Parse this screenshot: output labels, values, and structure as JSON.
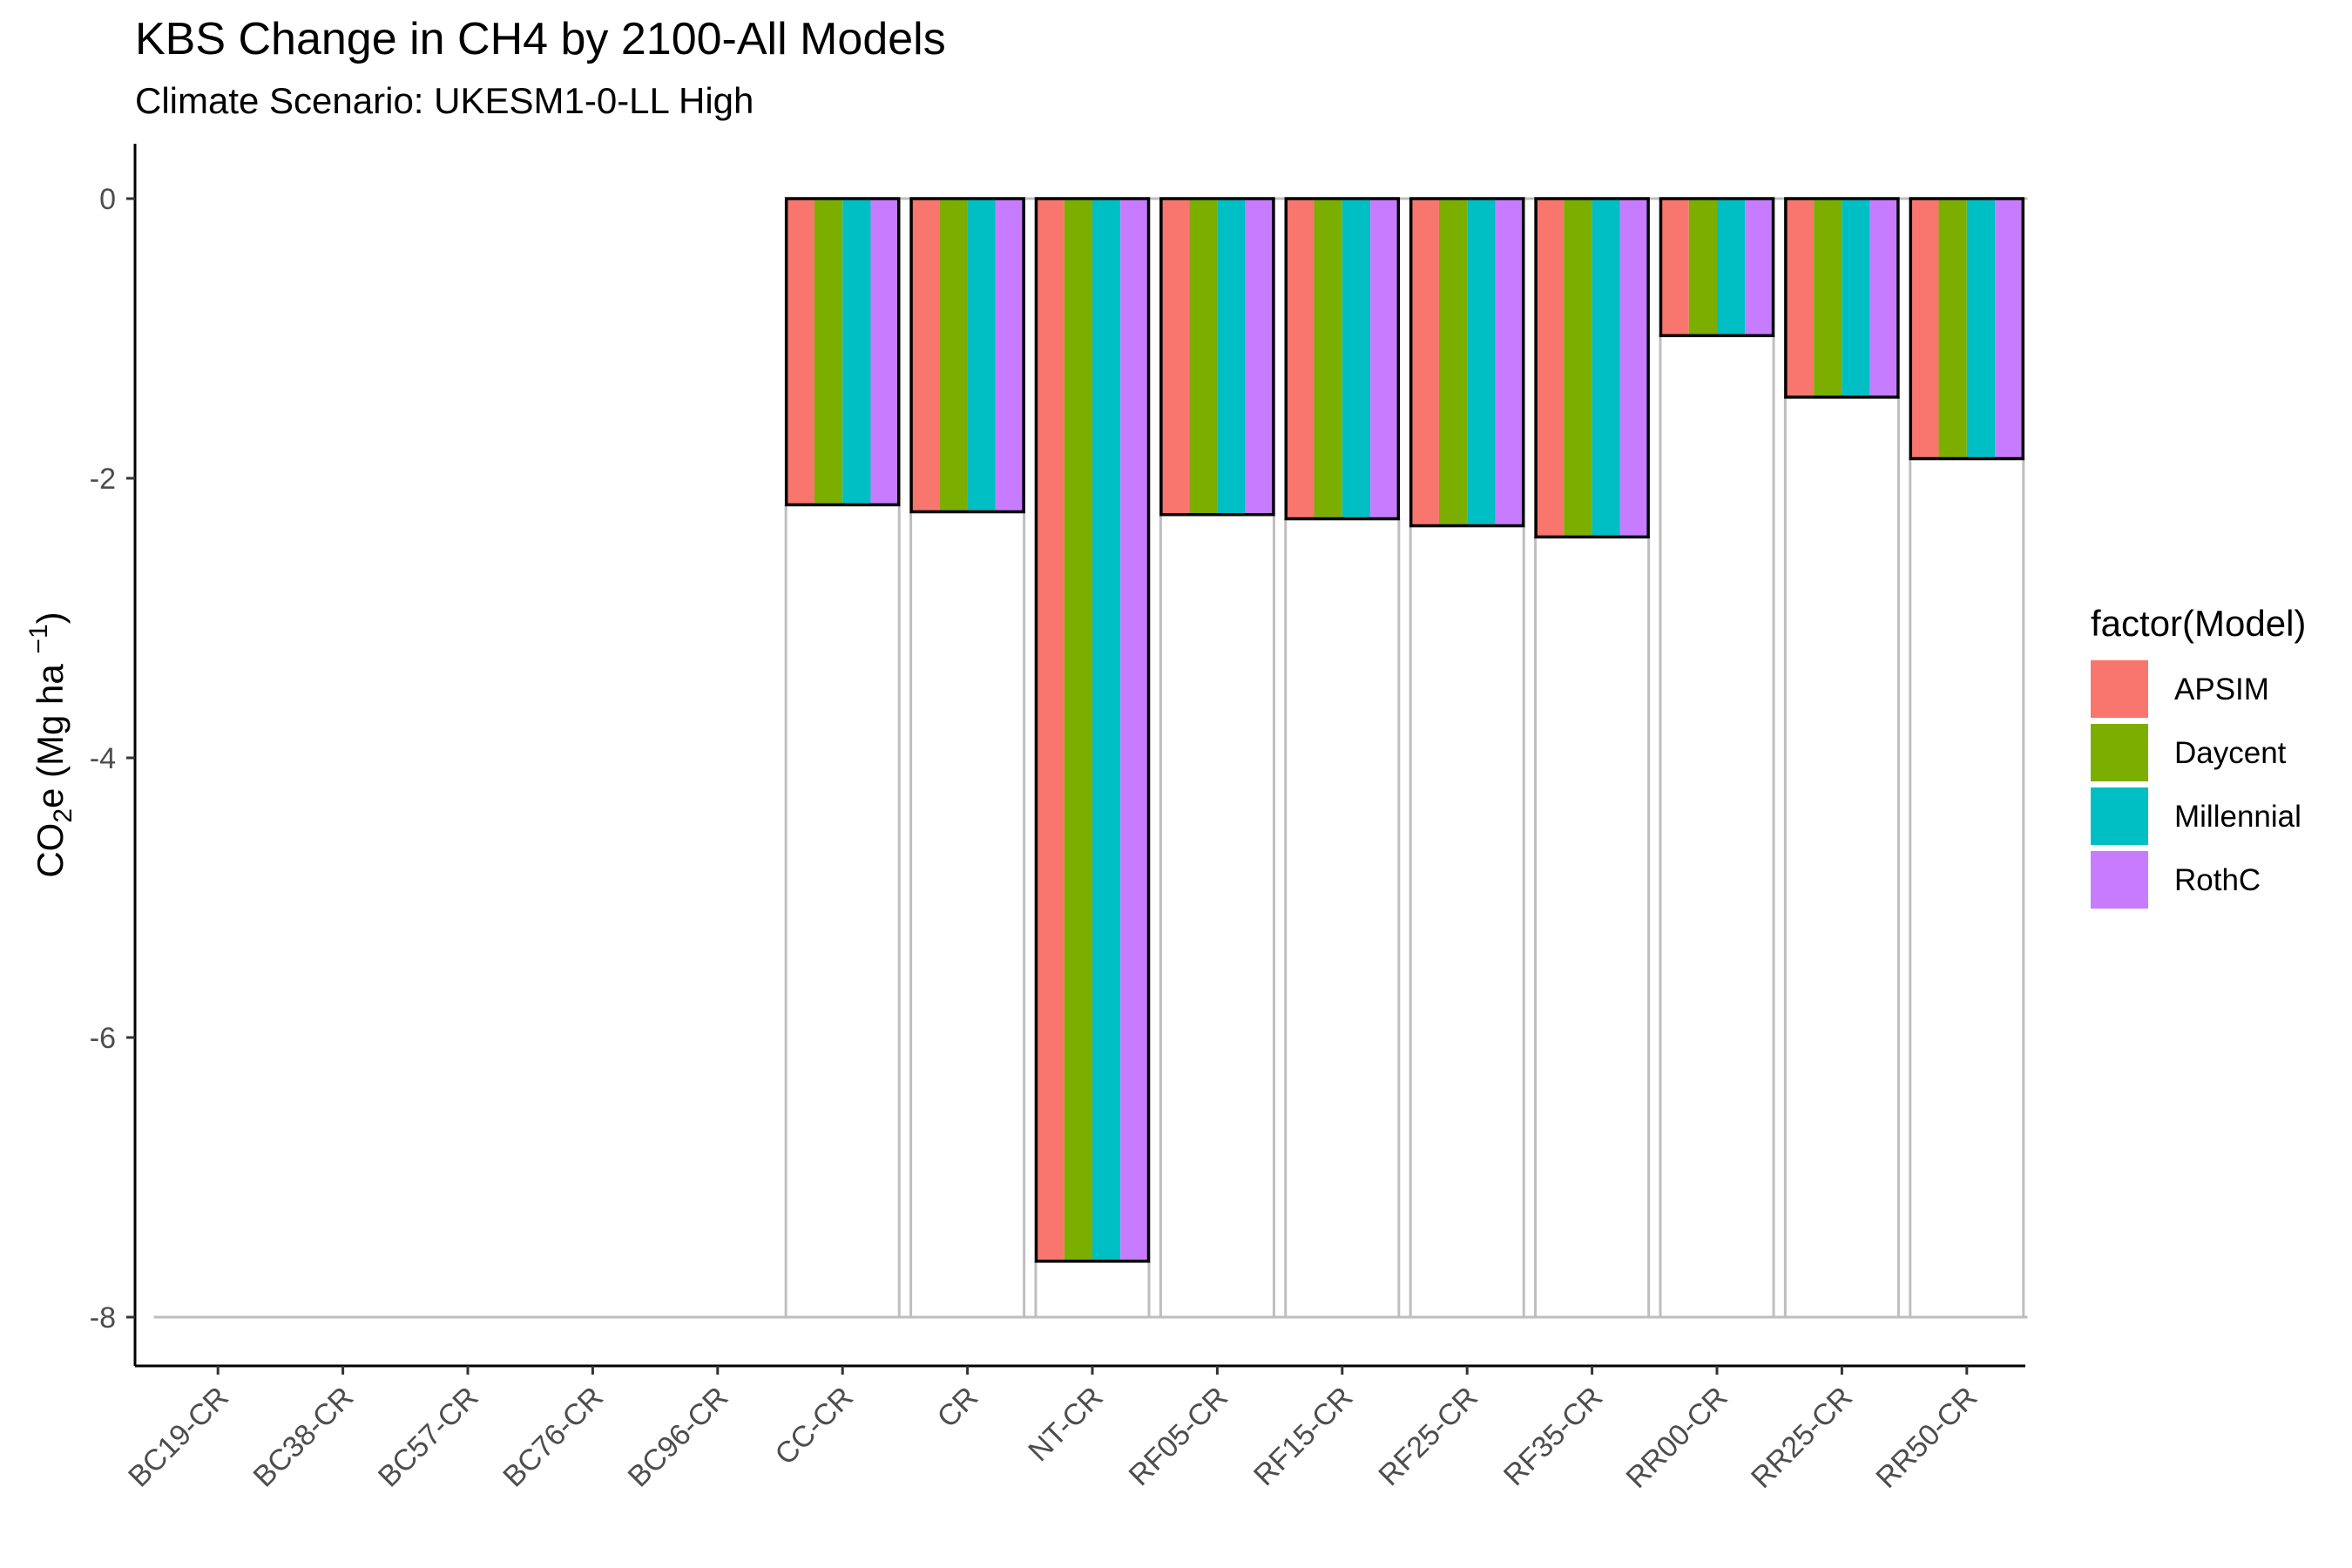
{
  "chart_data": {
    "type": "bar",
    "title": "KBS Change in CH4 by 2100-All Models",
    "subtitle": "Climate Scenario: UKESM1-0-LL High",
    "ylabel": {
      "prefix": "CO",
      "sub": "2",
      "mid": "e (Mg ha ",
      "sup": "−1",
      "suffix": ")"
    },
    "xlabel": "",
    "ylim": [
      -8,
      0
    ],
    "yticks": [
      0,
      -2,
      -4,
      -6,
      -8
    ],
    "grid": false,
    "legend": {
      "title": "factor(Model)",
      "position": "right"
    },
    "categories": [
      "BC19-CR",
      "BC38-CR",
      "BC57-CR",
      "BC76-CR",
      "BC96-CR",
      "CC-CR",
      "CR",
      "NT-CR",
      "RF05-CR",
      "RF15-CR",
      "RF25-CR",
      "RF35-CR",
      "RR00-CR",
      "RR25-CR",
      "RR50-CR"
    ],
    "series": [
      {
        "name": "APSIM",
        "color": "#F8766D",
        "values": [
          null,
          null,
          null,
          null,
          null,
          -2.19,
          -2.24,
          -7.6,
          -2.26,
          -2.29,
          -2.34,
          -2.42,
          -0.98,
          -1.42,
          -1.86
        ]
      },
      {
        "name": "Daycent",
        "color": "#7CAE00",
        "values": [
          null,
          null,
          null,
          null,
          null,
          -2.19,
          -2.24,
          -7.6,
          -2.26,
          -2.29,
          -2.34,
          -2.42,
          -0.98,
          -1.42,
          -1.86
        ]
      },
      {
        "name": "Millennial",
        "color": "#00BFC4",
        "values": [
          null,
          null,
          null,
          null,
          null,
          -2.19,
          -2.24,
          -7.6,
          -2.26,
          -2.29,
          -2.34,
          -2.42,
          -0.98,
          -1.42,
          -1.86
        ]
      },
      {
        "name": "RothC",
        "color": "#C77CFF",
        "values": [
          null,
          null,
          null,
          null,
          null,
          -2.19,
          -2.24,
          -7.6,
          -2.26,
          -2.29,
          -2.34,
          -2.42,
          -0.98,
          -1.42,
          -1.86
        ]
      }
    ],
    "reference_line": {
      "label": "",
      "value": -8,
      "color": "#BEBEBE"
    }
  }
}
